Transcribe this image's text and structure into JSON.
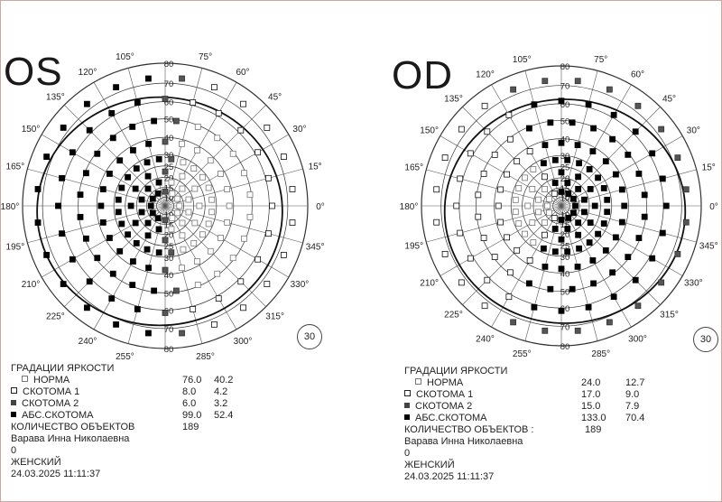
{
  "eyes": [
    {
      "id": "os",
      "label": "OS",
      "badge": "30",
      "angles": [
        "0°",
        "15°",
        "30°",
        "45°",
        "60°",
        "75°",
        "105°",
        "120°",
        "135°",
        "150°",
        "165°",
        "180°",
        "195°",
        "210°",
        "225°",
        "240°",
        "255°",
        "285°",
        "300°",
        "315°",
        "330°",
        "345°"
      ],
      "radii_upper": [
        "80",
        "70",
        "60",
        "50",
        "40",
        "30",
        "25",
        "20",
        "15",
        "10"
      ],
      "radii_lower": [
        "10",
        "15",
        "20",
        "25",
        "30",
        "40",
        "50",
        "60",
        "70",
        "80"
      ],
      "legend": {
        "title": "ГРАДАЦИИ ЯРКОСТИ",
        "rows": [
          {
            "label": "НОРМА",
            "count": "76.0",
            "percent": "40.2"
          },
          {
            "label": "СКОТОМА 1",
            "count": "8.0",
            "percent": "4.2"
          },
          {
            "label": "СКОТОМА 2",
            "count": "6.0",
            "percent": "3.2"
          },
          {
            "label": "АБС.СКОТОМА",
            "count": "99.0",
            "percent": "52.4"
          }
        ],
        "objects_label": "КОЛИЧЕСТВО ОБЪЕКТОВ",
        "objects_value": "189",
        "patient": "Варава Инна Николаевна",
        "zero": "0",
        "sex": "ЖЕНСКИЙ",
        "datetime": "24.03.2025   11:11:37"
      }
    },
    {
      "id": "od",
      "label": "OD",
      "badge": "30",
      "angles": [
        "0°",
        "15°",
        "30°",
        "45°",
        "60°",
        "75°",
        "105°",
        "120°",
        "135°",
        "150°",
        "165°",
        "180°",
        "195°",
        "210°",
        "225°",
        "240°",
        "255°",
        "285°",
        "300°",
        "315°",
        "330°",
        "345°"
      ],
      "radii_upper": [
        "80",
        "70",
        "60",
        "50",
        "40",
        "30",
        "25",
        "20",
        "15",
        "10"
      ],
      "radii_lower": [
        "10",
        "15",
        "20",
        "25",
        "30",
        "40",
        "50",
        "60",
        "70",
        "80"
      ],
      "legend": {
        "title": "ГРАДАЦИИ ЯРКОСТИ",
        "rows": [
          {
            "label": "НОРМА",
            "count": "24.0",
            "percent": "12.7"
          },
          {
            "label": "СКОТОМА 1",
            "count": "17.0",
            "percent": "9.0"
          },
          {
            "label": "СКОТОМА 2",
            "count": "15.0",
            "percent": "7.9"
          },
          {
            "label": "АБС.СКОТОМА",
            "count": "133.0",
            "percent": "70.4"
          }
        ],
        "objects_label": "КОЛИЧЕСТВО ОБЪЕКТОВ :",
        "objects_value": "189",
        "patient": "Варава Инна Николаевна",
        "zero": "0",
        "sex": "ЖЕНСКИЙ",
        "datetime": "24.03.2025   11:11:37"
      }
    }
  ]
}
